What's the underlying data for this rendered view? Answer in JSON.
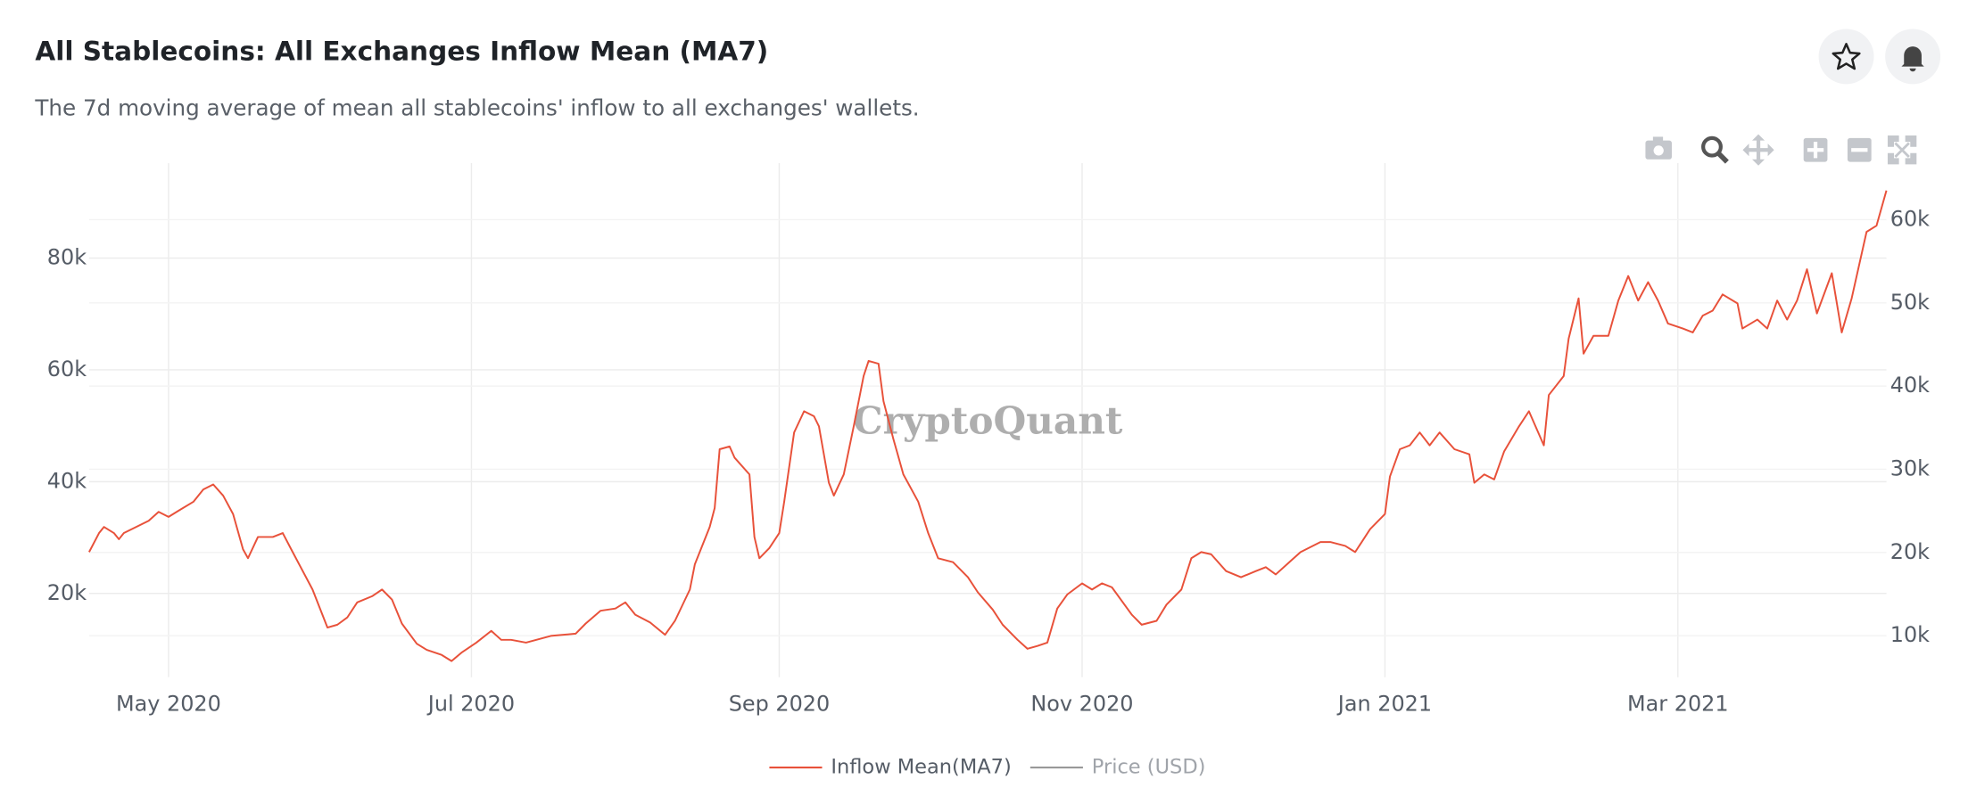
{
  "header": {
    "title": "All Stablecoins: All Exchanges Inflow Mean (MA7)",
    "subtitle": "The 7d moving average of mean all stablecoins' inflow to all exchanges' wallets."
  },
  "chart_data": {
    "type": "line",
    "watermark": "CryptoQuant",
    "x": [
      "2020-04-15",
      "2020-04-17",
      "2020-04-18",
      "2020-04-20",
      "2020-04-21",
      "2020-04-22",
      "2020-04-27",
      "2020-04-29",
      "2020-05-01",
      "2020-05-03",
      "2020-05-06",
      "2020-05-08",
      "2020-05-10",
      "2020-05-12",
      "2020-05-14",
      "2020-05-16",
      "2020-05-17",
      "2020-05-19",
      "2020-05-22",
      "2020-05-24",
      "2020-05-26",
      "2020-05-30",
      "2020-06-02",
      "2020-06-04",
      "2020-06-06",
      "2020-06-08",
      "2020-06-11",
      "2020-06-13",
      "2020-06-15",
      "2020-06-17",
      "2020-06-20",
      "2020-06-22",
      "2020-06-25",
      "2020-06-27",
      "2020-06-29",
      "2020-07-02",
      "2020-07-05",
      "2020-07-07",
      "2020-07-09",
      "2020-07-12",
      "2020-07-17",
      "2020-07-22",
      "2020-07-24",
      "2020-07-27",
      "2020-07-30",
      "2020-08-01",
      "2020-08-03",
      "2020-08-06",
      "2020-08-09",
      "2020-08-11",
      "2020-08-14",
      "2020-08-15",
      "2020-08-18",
      "2020-08-19",
      "2020-08-20",
      "2020-08-22",
      "2020-08-23",
      "2020-08-26",
      "2020-08-27",
      "2020-08-28",
      "2020-08-30",
      "2020-09-01",
      "2020-09-02",
      "2020-09-04",
      "2020-09-06",
      "2020-09-08",
      "2020-09-09",
      "2020-09-11",
      "2020-09-12",
      "2020-09-14",
      "2020-09-16",
      "2020-09-18",
      "2020-09-19",
      "2020-09-21",
      "2020-09-22",
      "2020-09-24",
      "2020-09-26",
      "2020-09-29",
      "2020-10-01",
      "2020-10-03",
      "2020-10-06",
      "2020-10-09",
      "2020-10-11",
      "2020-10-14",
      "2020-10-16",
      "2020-10-19",
      "2020-10-21",
      "2020-10-23",
      "2020-10-25",
      "2020-10-27",
      "2020-10-29",
      "2020-11-01",
      "2020-11-03",
      "2020-11-05",
      "2020-11-07",
      "2020-11-11",
      "2020-11-13",
      "2020-11-16",
      "2020-11-18",
      "2020-11-21",
      "2020-11-23",
      "2020-11-25",
      "2020-11-27",
      "2020-11-30",
      "2020-12-03",
      "2020-12-06",
      "2020-12-08",
      "2020-12-10",
      "2020-12-13",
      "2020-12-15",
      "2020-12-19",
      "2020-12-21",
      "2020-12-24",
      "2020-12-26",
      "2020-12-29",
      "2021-01-01",
      "2021-01-02",
      "2021-01-04",
      "2021-01-06",
      "2021-01-08",
      "2021-01-10",
      "2021-01-12",
      "2021-01-15",
      "2021-01-18",
      "2021-01-19",
      "2021-01-21",
      "2021-01-23",
      "2021-01-25",
      "2021-01-28",
      "2021-01-30",
      "2021-02-02",
      "2021-02-03",
      "2021-02-06",
      "2021-02-07",
      "2021-02-09",
      "2021-02-10",
      "2021-02-12",
      "2021-02-15",
      "2021-02-17",
      "2021-02-19",
      "2021-02-21",
      "2021-02-23",
      "2021-02-25",
      "2021-02-27",
      "2021-03-02",
      "2021-03-04",
      "2021-03-06",
      "2021-03-08",
      "2021-03-10",
      "2021-03-13",
      "2021-03-14",
      "2021-03-17",
      "2021-03-19",
      "2021-03-21",
      "2021-03-23",
      "2021-03-25",
      "2021-03-27",
      "2021-03-29",
      "2021-04-01",
      "2021-04-03",
      "2021-04-05",
      "2021-04-08",
      "2021-04-10",
      "2021-04-12"
    ],
    "series": [
      {
        "name": "Inflow Mean(MA7)",
        "color": "#e8513a",
        "values": [
          27400,
          30800,
          31900,
          30800,
          29700,
          30800,
          33000,
          34600,
          33700,
          34800,
          36400,
          38600,
          39500,
          37500,
          34200,
          27900,
          26300,
          30100,
          30100,
          30800,
          27400,
          20700,
          13900,
          14400,
          15700,
          18400,
          19500,
          20700,
          18900,
          14600,
          11000,
          9900,
          9000,
          7900,
          9400,
          11200,
          13300,
          11700,
          11700,
          11200,
          12400,
          12800,
          14600,
          16900,
          17300,
          18400,
          16200,
          14800,
          12600,
          15100,
          20700,
          25200,
          31900,
          35300,
          45800,
          46300,
          44300,
          41300,
          30100,
          26300,
          28100,
          30800,
          36400,
          48800,
          52600,
          51700,
          49900,
          39800,
          37500,
          41300,
          49900,
          58900,
          61600,
          61100,
          54400,
          47600,
          41300,
          36400,
          30800,
          26300,
          25600,
          22900,
          20200,
          17100,
          14400,
          11700,
          10100,
          10600,
          11200,
          17300,
          19800,
          21800,
          20700,
          21800,
          21100,
          16200,
          14400,
          15100,
          18000,
          20700,
          26300,
          27400,
          27000,
          24000,
          22900,
          24000,
          24700,
          23400,
          25800,
          27400,
          29200,
          29200,
          28500,
          27400,
          31500,
          34200,
          40900,
          45800,
          46500,
          48800,
          46500,
          48800,
          45800,
          44900,
          39800,
          41300,
          40400,
          45400,
          49900,
          52600,
          46500,
          55500,
          58900,
          65600,
          72800,
          62900,
          66100,
          66100,
          72400,
          76800,
          72400,
          75700,
          72400,
          68300,
          67400,
          66700,
          69700,
          70600,
          73500,
          71900,
          67400,
          69000,
          67400,
          72400,
          69000,
          72400,
          78000,
          70100,
          77300,
          66700,
          72800,
          84700,
          85800,
          92100
        ]
      },
      {
        "name": "Price (USD)",
        "color": "#999999",
        "axis": "y2",
        "visible": false
      }
    ],
    "xlim": [
      "2020-04-15",
      "2021-04-12"
    ],
    "xticks": [
      {
        "value": "2020-05-01",
        "label": "May 2020"
      },
      {
        "value": "2020-07-01",
        "label": "Jul 2020"
      },
      {
        "value": "2020-09-01",
        "label": "Sep 2020"
      },
      {
        "value": "2020-11-01",
        "label": "Nov 2020"
      },
      {
        "value": "2021-01-01",
        "label": "Jan 2021"
      },
      {
        "value": "2021-03-01",
        "label": "Mar 2021"
      }
    ],
    "ylim": [
      5000,
      97000
    ],
    "yticks": [
      {
        "value": 20000,
        "label": "20k"
      },
      {
        "value": 40000,
        "label": "40k"
      },
      {
        "value": 60000,
        "label": "60k"
      },
      {
        "value": 80000,
        "label": "80k"
      }
    ],
    "y2lim": [
      5000,
      66800
    ],
    "y2ticks": [
      {
        "value": 10000,
        "label": "10k"
      },
      {
        "value": 20000,
        "label": "20k"
      },
      {
        "value": 30000,
        "label": "30k"
      },
      {
        "value": 40000,
        "label": "40k"
      },
      {
        "value": 50000,
        "label": "50k"
      },
      {
        "value": 60000,
        "label": "60k"
      }
    ],
    "grid": true
  }
}
